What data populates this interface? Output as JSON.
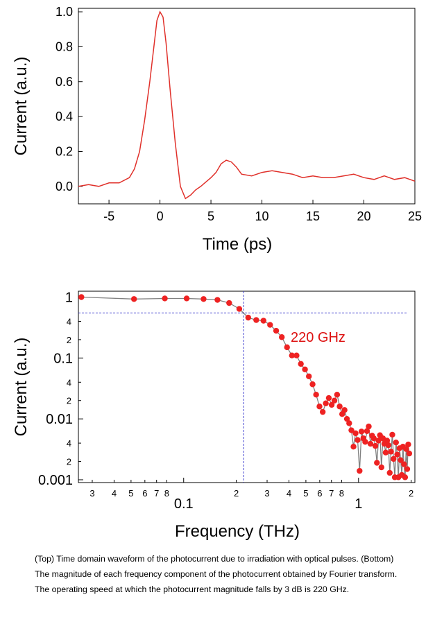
{
  "caption": "(Top) Time domain waveform of the photocurrent due to irradiation with optical pulses. (Bottom) The magnitude of each frequency component of the photocurrent obtained by Fourier transform. The operating speed at which the photocurrent magnitude falls by 3 dB is 220 GHz.",
  "chart_data": [
    {
      "type": "line",
      "xlabel": "Time (ps)",
      "ylabel": "Current (a.u.)",
      "xlim": [
        -8,
        25
      ],
      "ylim": [
        -0.1,
        1.02
      ],
      "xticks": [
        -5,
        0,
        5,
        10,
        15,
        20,
        25
      ],
      "yticks": [
        0.0,
        0.2,
        0.4,
        0.6,
        0.8,
        1.0
      ],
      "xtick_labels": [
        "-5",
        "0",
        "5",
        "10",
        "15",
        "20",
        "25"
      ],
      "ytick_labels": [
        "0.0",
        "0.2",
        "0.4",
        "0.6",
        "0.8",
        "1.0"
      ],
      "grid": false,
      "series_color": "#e0302a",
      "x": [
        -8,
        -7,
        -6,
        -5,
        -4,
        -3,
        -2.5,
        -2,
        -1.5,
        -1,
        -0.6,
        -0.3,
        0,
        0.3,
        0.6,
        1,
        1.5,
        2,
        2.5,
        3,
        3.5,
        4,
        5,
        5.5,
        6,
        6.5,
        7,
        7.5,
        8,
        9,
        10,
        11,
        12,
        13,
        14,
        15,
        16,
        17,
        18,
        19,
        20,
        21,
        22,
        23,
        24,
        25
      ],
      "y": [
        0.0,
        0.01,
        0.0,
        0.02,
        0.02,
        0.05,
        0.1,
        0.2,
        0.38,
        0.6,
        0.8,
        0.95,
        1.0,
        0.97,
        0.82,
        0.55,
        0.25,
        0.0,
        -0.07,
        -0.05,
        -0.02,
        0.0,
        0.05,
        0.08,
        0.13,
        0.15,
        0.14,
        0.11,
        0.07,
        0.06,
        0.08,
        0.09,
        0.08,
        0.07,
        0.05,
        0.06,
        0.05,
        0.05,
        0.06,
        0.07,
        0.05,
        0.04,
        0.06,
        0.04,
        0.05,
        0.03
      ]
    },
    {
      "type": "line",
      "xscale": "log",
      "yscale": "log",
      "xlabel": "Frequency (THz)",
      "ylabel": "Current (a.u.)",
      "xlim": [
        0.025,
        2.1
      ],
      "ylim": [
        0.0009,
        1.25
      ],
      "y_major_ticks": [
        0.001,
        0.01,
        0.1,
        1
      ],
      "y_major_labels": [
        "0.001",
        "0.01",
        "0.1",
        "1"
      ],
      "y_minor_ticks": [
        0.002,
        0.004,
        0.02,
        0.04,
        0.2,
        0.4
      ],
      "y_minor_labels": [
        "2",
        "4",
        "2",
        "4",
        "2",
        "4"
      ],
      "x_major_ticks": [
        0.1,
        1
      ],
      "x_major_labels": [
        "0.1",
        "1"
      ],
      "x_minor_ticks": [
        0.03,
        0.04,
        0.05,
        0.06,
        0.07,
        0.08,
        0.2,
        0.3,
        0.4,
        0.5,
        0.6,
        0.7,
        0.8,
        2
      ],
      "x_minor_labels": [
        "3",
        "4",
        "5",
        "6",
        "7",
        "8",
        "2",
        "3",
        "4",
        "5",
        "6",
        "7",
        "8",
        "2"
      ],
      "grid": false,
      "line_color": "#808080",
      "marker_color": "#ee2222",
      "guide_color": "#3333cc",
      "guide_x": 0.22,
      "guide_y": 0.55,
      "annotation": "220 GHz",
      "x": [
        0.026,
        0.052,
        0.078,
        0.104,
        0.13,
        0.156,
        0.182,
        0.208,
        0.234,
        0.26,
        0.286,
        0.312,
        0.338,
        0.364,
        0.39,
        0.416,
        0.442,
        0.468,
        0.494,
        0.52,
        0.546,
        0.572,
        0.598,
        0.624,
        0.65,
        0.676,
        0.702,
        0.728,
        0.754,
        0.78,
        0.806,
        0.832,
        0.858,
        0.884,
        0.91,
        0.936,
        0.962,
        0.988,
        1.014,
        1.04,
        1.066,
        1.092,
        1.118,
        1.144,
        1.17,
        1.196,
        1.222,
        1.248,
        1.274,
        1.3,
        1.326,
        1.352,
        1.378,
        1.404,
        1.43,
        1.456,
        1.482,
        1.508,
        1.534,
        1.56,
        1.586,
        1.612,
        1.638,
        1.664,
        1.69,
        1.716,
        1.742,
        1.768,
        1.794,
        1.82,
        1.846,
        1.872,
        1.898,
        1.924,
        1.95
      ],
      "y": [
        1.0,
        0.93,
        0.95,
        0.95,
        0.93,
        0.9,
        0.8,
        0.64,
        0.46,
        0.42,
        0.41,
        0.35,
        0.28,
        0.22,
        0.15,
        0.11,
        0.11,
        0.08,
        0.065,
        0.05,
        0.037,
        0.025,
        0.016,
        0.013,
        0.018,
        0.022,
        0.017,
        0.02,
        0.025,
        0.016,
        0.012,
        0.014,
        0.01,
        0.0085,
        0.0065,
        0.0035,
        0.0058,
        0.0045,
        0.0014,
        0.0062,
        0.0048,
        0.0042,
        0.0063,
        0.0075,
        0.0039,
        0.0053,
        0.0048,
        0.0036,
        0.0019,
        0.0044,
        0.0054,
        0.0016,
        0.0048,
        0.0039,
        0.0028,
        0.0044,
        0.0037,
        0.0013,
        0.0029,
        0.0055,
        0.0022,
        0.0011,
        0.0041,
        0.0026,
        0.0011,
        0.0033,
        0.0021,
        0.0012,
        0.0035,
        0.0018,
        0.0011,
        0.0032,
        0.0015,
        0.0038,
        0.0027
      ],
      "markers_x": [
        0.026,
        0.052,
        0.078,
        0.104,
        0.13,
        0.156,
        0.182,
        0.208,
        0.234,
        0.26,
        0.286,
        0.312,
        0.338,
        0.364,
        0.39,
        0.416,
        0.442,
        0.468,
        0.494,
        0.52,
        0.546,
        0.572,
        0.598,
        0.624,
        0.65,
        0.676,
        0.702,
        0.728,
        0.754,
        0.78,
        0.806,
        0.832,
        0.858,
        0.884,
        0.91,
        0.936,
        0.962,
        0.988,
        1.014,
        1.04,
        1.066,
        1.092,
        1.118,
        1.144,
        1.17,
        1.196,
        1.222,
        1.248,
        1.274,
        1.3,
        1.326,
        1.352,
        1.378,
        1.404,
        1.43,
        1.456,
        1.482,
        1.508,
        1.534,
        1.56,
        1.586,
        1.612,
        1.638,
        1.664,
        1.69,
        1.716,
        1.742,
        1.768,
        1.794,
        1.82,
        1.846,
        1.872,
        1.898,
        1.924,
        1.95
      ]
    }
  ]
}
